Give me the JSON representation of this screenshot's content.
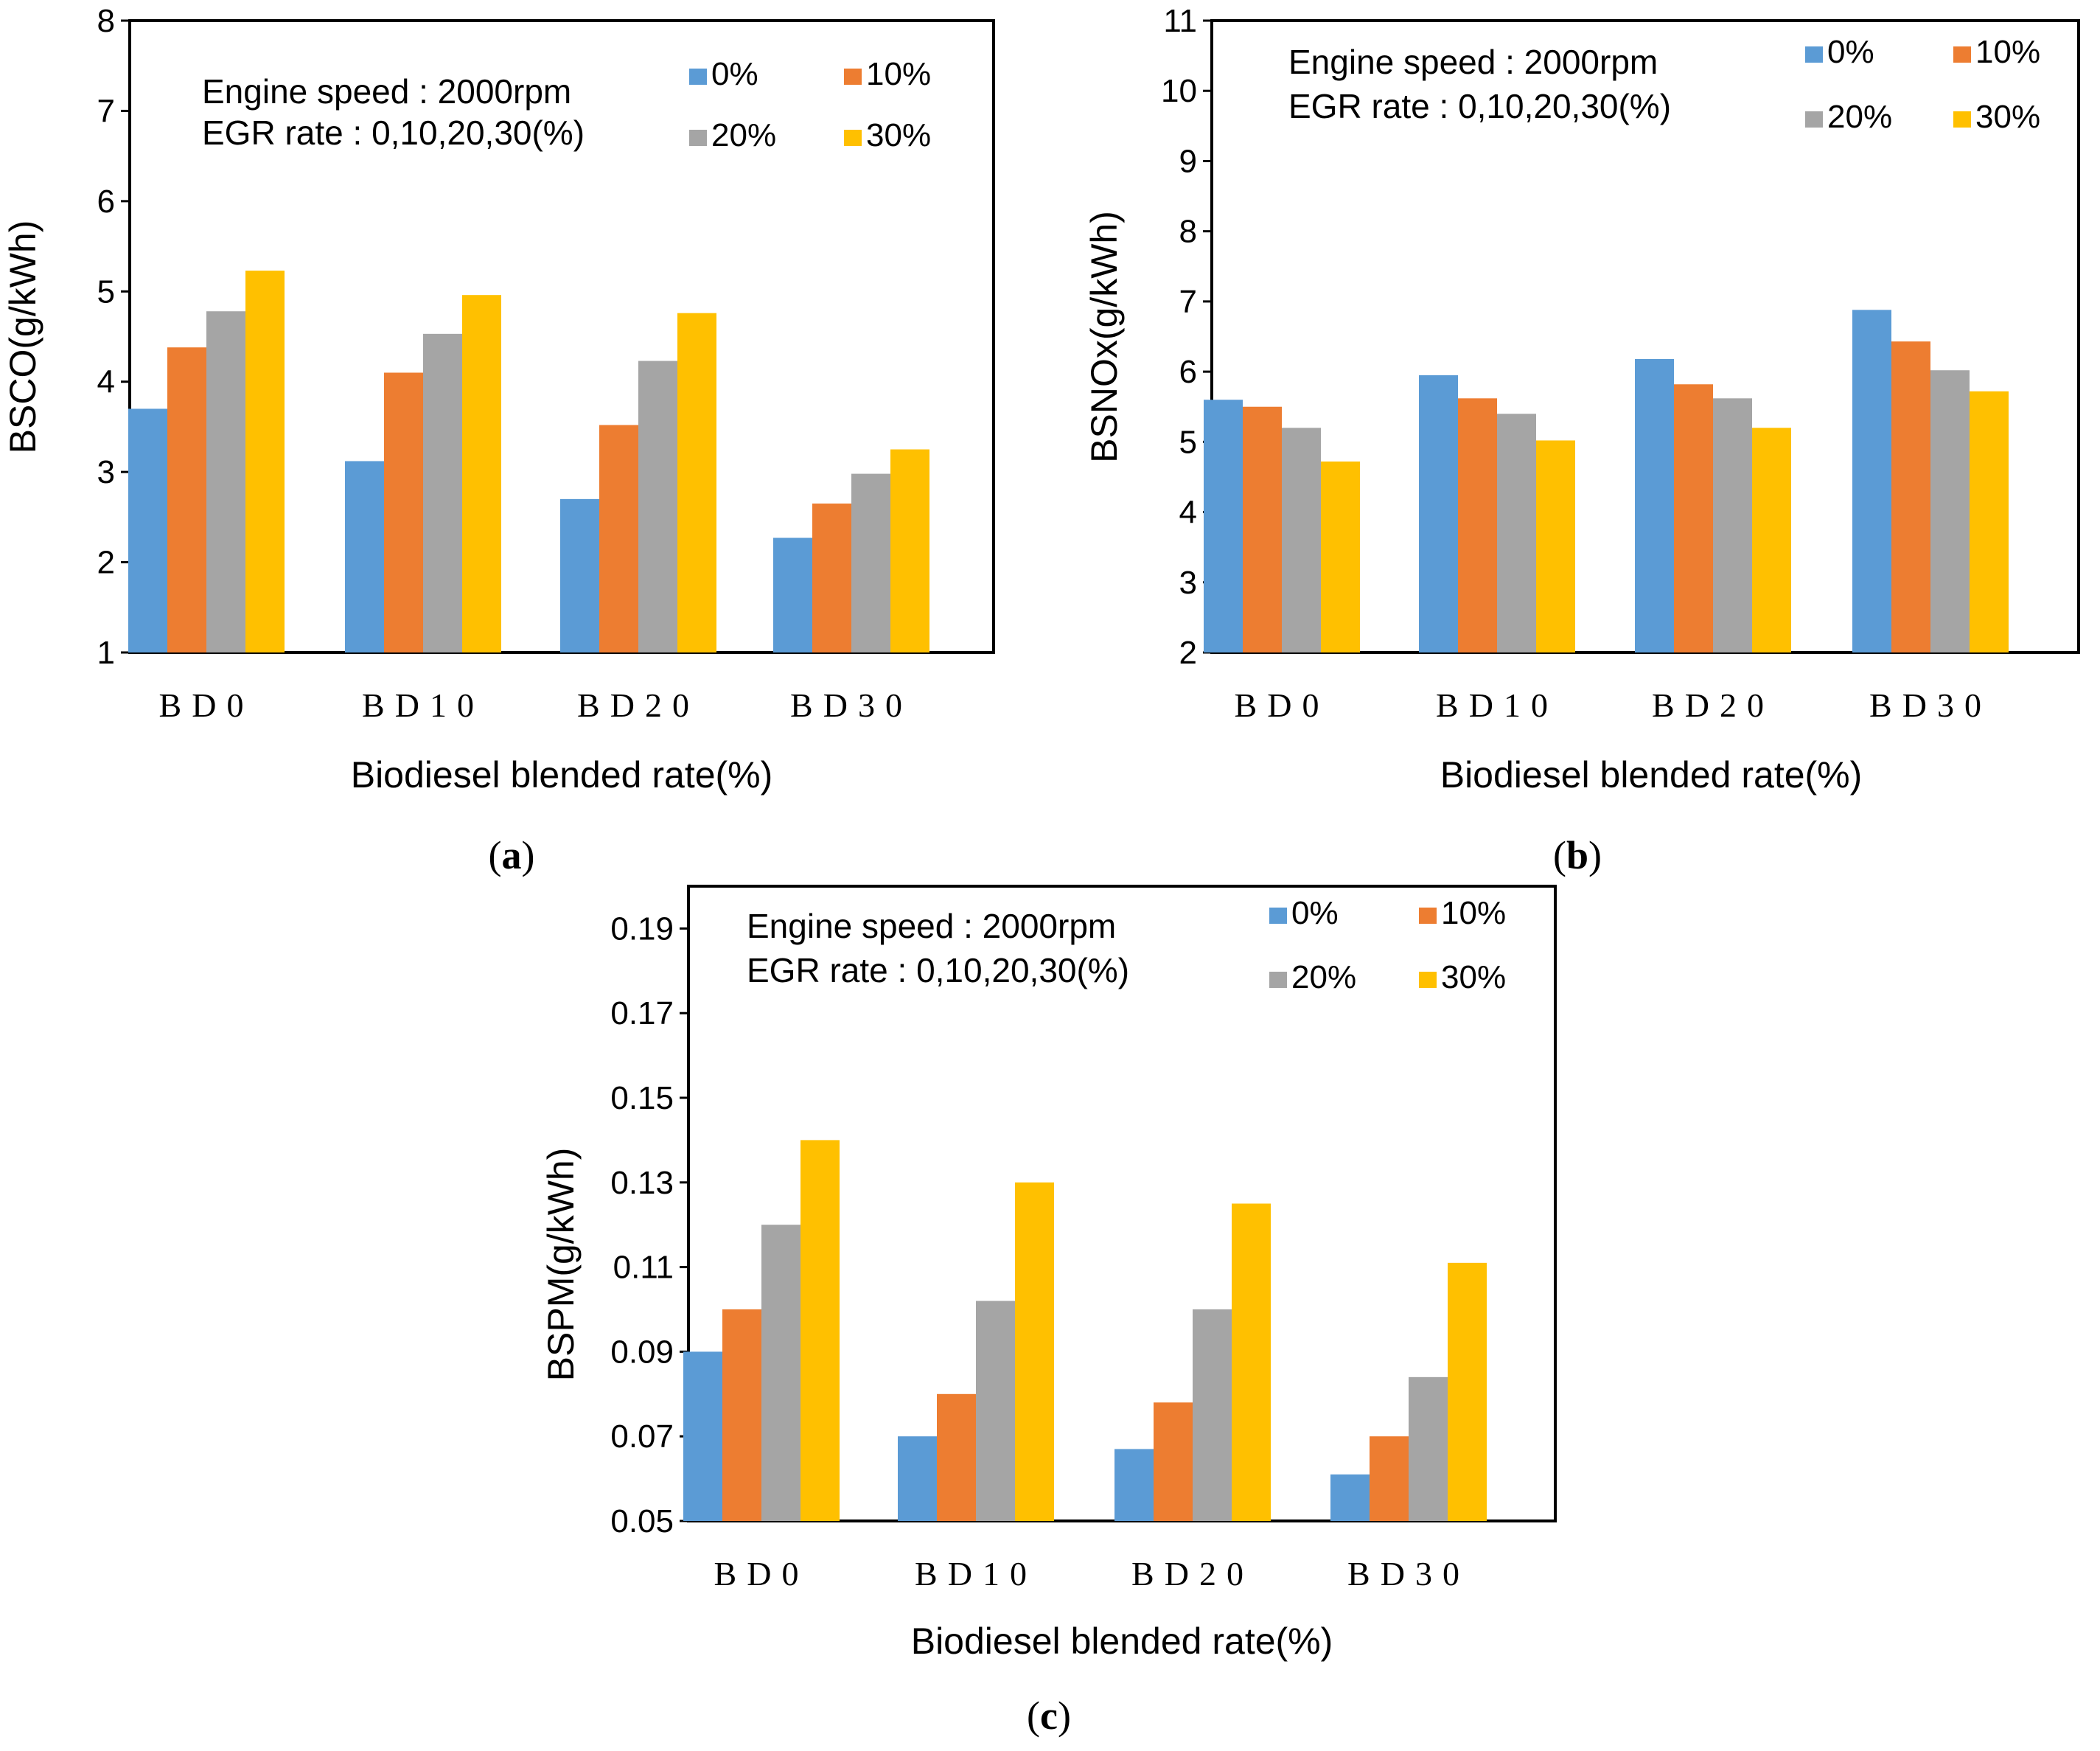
{
  "colors": {
    "s0": "#5B9BD5",
    "s1": "#ED7D31",
    "s2": "#A5A5A5",
    "s3": "#FFC000"
  },
  "chart_data": [
    {
      "type": "bar",
      "panel_label": "(a)",
      "annotation": [
        "Engine speed : 2000rpm",
        "EGR rate : 0,10,20,30(%)"
      ],
      "categories": [
        "BD0",
        "BD10",
        "BD20",
        "BD30"
      ],
      "series": [
        {
          "name": "0%",
          "values": [
            3.7,
            3.12,
            2.7,
            2.27
          ]
        },
        {
          "name": "10%",
          "values": [
            4.38,
            4.1,
            3.52,
            2.65
          ]
        },
        {
          "name": "20%",
          "values": [
            4.78,
            4.53,
            4.23,
            2.98
          ]
        },
        {
          "name": "30%",
          "values": [
            5.23,
            4.96,
            4.76,
            3.25
          ]
        }
      ],
      "xlabel": "Biodiesel blended  rate(%)",
      "ylabel": "BSCO(g/kWh)",
      "ylim": [
        1,
        8
      ],
      "yticks": [
        "1",
        "2",
        "3",
        "4",
        "5",
        "6",
        "7",
        "8"
      ],
      "legend_position": "top-right"
    },
    {
      "type": "bar",
      "panel_label": "(b)",
      "annotation": [
        "Engine speed : 2000rpm",
        "EGR rate : 0,10,20,30(%)"
      ],
      "categories": [
        "BD0",
        "BD10",
        "BD20",
        "BD30"
      ],
      "series": [
        {
          "name": "0%",
          "values": [
            5.6,
            5.95,
            6.18,
            6.88
          ]
        },
        {
          "name": "10%",
          "values": [
            5.5,
            5.62,
            5.82,
            6.43
          ]
        },
        {
          "name": "20%",
          "values": [
            5.2,
            5.4,
            5.62,
            6.02
          ]
        },
        {
          "name": "30%",
          "values": [
            4.72,
            5.02,
            5.2,
            5.72
          ]
        }
      ],
      "xlabel": "Biodiesel blended rate(%)",
      "ylabel": "BSNOx(g/kWh)",
      "ylim": [
        2,
        11
      ],
      "yticks": [
        "2",
        "3",
        "4",
        "5",
        "6",
        "7",
        "8",
        "9",
        "10",
        "11"
      ],
      "legend_position": "top-right"
    },
    {
      "type": "bar",
      "panel_label": "(c)",
      "annotation": [
        "Engine speed : 2000rpm",
        "EGR rate : 0,10,20,30(%)"
      ],
      "categories": [
        "BD0",
        "BD10",
        "BD20",
        "BD30"
      ],
      "series": [
        {
          "name": "0%",
          "values": [
            0.09,
            0.07,
            0.067,
            0.061
          ]
        },
        {
          "name": "10%",
          "values": [
            0.1,
            0.08,
            0.078,
            0.07
          ]
        },
        {
          "name": "20%",
          "values": [
            0.12,
            0.102,
            0.1,
            0.084
          ]
        },
        {
          "name": "30%",
          "values": [
            0.14,
            0.13,
            0.125,
            0.111
          ]
        }
      ],
      "xlabel": "Biodiesel blended rate(%)",
      "ylabel": "BSPM(g/kWh)",
      "ylim": [
        0.05,
        0.2
      ],
      "yticks": [
        "0.05",
        "0.07",
        "0.09",
        "0.11",
        "0.13",
        "0.15",
        "0.17",
        "0.19"
      ],
      "legend_position": "top-right"
    }
  ]
}
